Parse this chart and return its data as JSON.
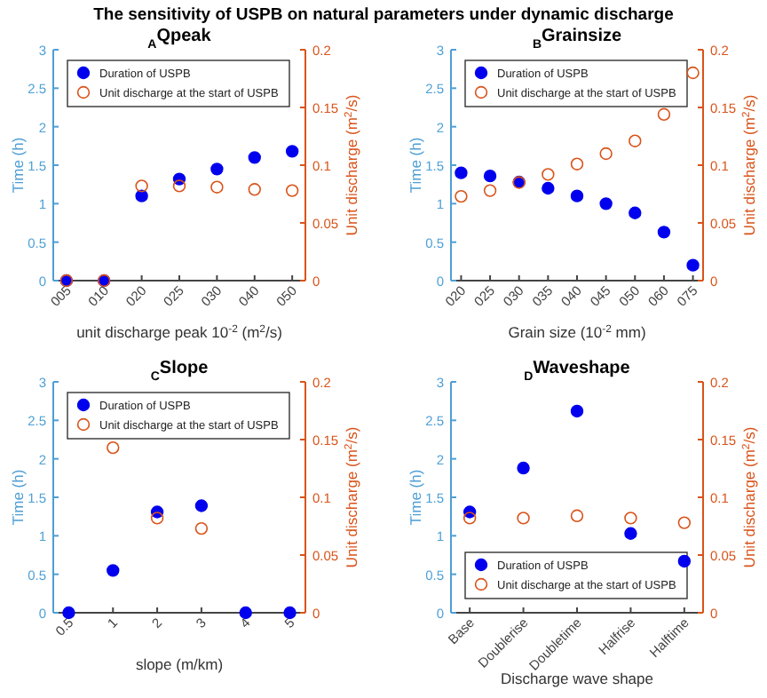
{
  "chart_data": [
    {
      "type": "scatter",
      "title": "$_{A}$Qpeak",
      "annotations": [
        "The sensitivity of USPB on natural parameters under dynamic discharge"
      ],
      "xlabel": "unit discharge peak 10$^{-2}$ (m$^{2}$/s)",
      "ylabel": "Time (h)",
      "y2label": "Unit discharge (m$^{2}$/s)",
      "categories": [
        "005",
        "010",
        "020",
        "025",
        "030",
        "040",
        "050"
      ],
      "ylim": [
        0,
        3
      ],
      "yticks": [
        0,
        0.5,
        1,
        1.5,
        2,
        2.5,
        3
      ],
      "y2lim": [
        0,
        0.2
      ],
      "y2ticks": [
        0,
        0.05,
        0.1,
        0.15,
        0.2
      ],
      "legend": "top left",
      "marker": "circle",
      "series": [
        {
          "name": "Duration of USPB",
          "color": "#0000ee",
          "values": [
            0,
            0,
            1.1,
            1.32,
            1.45,
            1.6,
            1.68
          ]
        },
        {
          "name": "Unit discharge at the start of USPB",
          "color": "#d95319",
          "axis": "y2",
          "values": [
            0,
            0,
            0.082,
            0.082,
            0.081,
            0.079,
            0.078
          ]
        }
      ]
    },
    {
      "type": "scatter",
      "title": "$_{B}$Grainsize",
      "xlabel": "Grain size (10$^{-2}$ mm)",
      "ylabel": "Time (h)",
      "y2label": "Unit discharge (m$^{2}$/s)",
      "categories": [
        "020",
        "025",
        "030",
        "035",
        "040",
        "045",
        "050",
        "060",
        "075"
      ],
      "ylim": [
        0,
        3
      ],
      "yticks": [
        0,
        0.5,
        1,
        1.5,
        2,
        2.5,
        3
      ],
      "y2lim": [
        0,
        0.2
      ],
      "y2ticks": [
        0,
        0.05,
        0.1,
        0.15,
        0.2
      ],
      "legend": "top left",
      "marker": "circle",
      "series": [
        {
          "name": "Duration of USPB",
          "color": "#0000ee",
          "values": [
            1.4,
            1.36,
            1.28,
            1.2,
            1.1,
            1.0,
            0.88,
            0.63,
            0.2
          ]
        },
        {
          "name": "Unit discharge at the start of USPB",
          "color": "#d95319",
          "axis": "y2",
          "values": [
            0.073,
            0.078,
            0.085,
            0.092,
            0.101,
            0.11,
            0.121,
            0.144,
            0.18
          ]
        }
      ]
    },
    {
      "type": "scatter",
      "title": "$_{C}$Slope",
      "xlabel": "slope (m/km)",
      "ylabel": "Time (h)",
      "y2label": "Unit discharge (m$^{2}$/s)",
      "categories": [
        "0.5",
        "1",
        "2",
        "3",
        "4",
        "5"
      ],
      "ylim": [
        0,
        3
      ],
      "yticks": [
        0,
        0.5,
        1,
        1.5,
        2,
        2.5,
        3
      ],
      "y2lim": [
        0,
        0.2
      ],
      "y2ticks": [
        0,
        0.05,
        0.1,
        0.15,
        0.2
      ],
      "legend": "top left",
      "marker": "circle",
      "series": [
        {
          "name": "Duration of USPB",
          "color": "#0000ee",
          "values": [
            0,
            0.55,
            1.31,
            1.39,
            0,
            0
          ]
        },
        {
          "name": "Unit discharge at the start of USPB",
          "color": "#d95319",
          "axis": "y2",
          "values": [
            null,
            0.143,
            0.082,
            0.073,
            null,
            null
          ]
        }
      ]
    },
    {
      "type": "scatter",
      "title": "$_{D}$Waveshape",
      "xlabel": "Discharge wave shape",
      "ylabel": "Time (h)",
      "y2label": "Unit discharge (m$^{2}$/s)",
      "categories": [
        "Base",
        "Doublerise",
        "Doubletime",
        "Halfrise",
        "Halftime"
      ],
      "ylim": [
        0,
        3
      ],
      "yticks": [
        0,
        0.5,
        1,
        1.5,
        2,
        2.5,
        3
      ],
      "y2lim": [
        0,
        0.2
      ],
      "y2ticks": [
        0,
        0.05,
        0.1,
        0.15,
        0.2
      ],
      "legend": "bottom left",
      "marker": "circle",
      "series": [
        {
          "name": "Duration of USPB",
          "color": "#0000ee",
          "values": [
            1.31,
            1.88,
            2.62,
            1.03,
            0.67
          ]
        },
        {
          "name": "Unit discharge at the start of USPB",
          "color": "#d95319",
          "axis": "y2",
          "values": [
            0.082,
            0.082,
            0.084,
            0.082,
            0.078
          ]
        }
      ]
    }
  ]
}
